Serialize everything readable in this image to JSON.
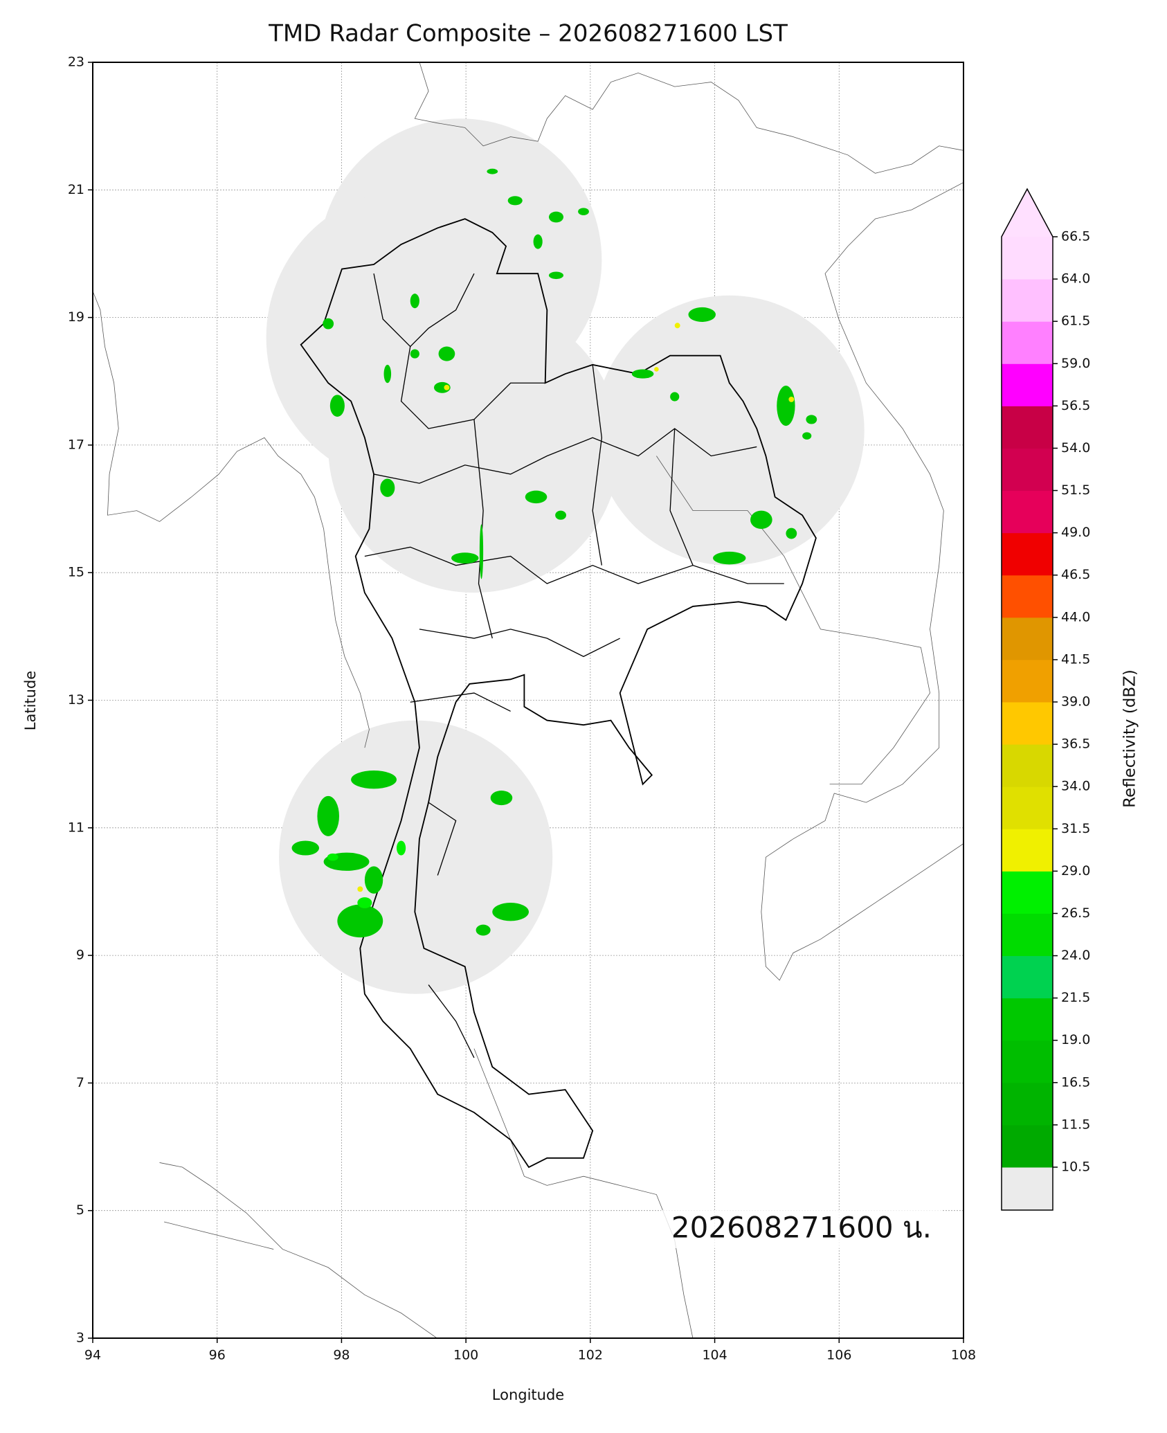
{
  "chart_data": {
    "type": "map",
    "title": "TMD Radar Composite – 202608271600 LST",
    "xlabel": "Longitude",
    "ylabel": "Latitude",
    "xlim": [
      94,
      108
    ],
    "ylim": [
      3,
      23
    ],
    "xticks": [
      94,
      96,
      98,
      100,
      102,
      104,
      106,
      108
    ],
    "yticks": [
      3,
      5,
      7,
      9,
      11,
      13,
      15,
      17,
      19,
      21,
      23
    ],
    "grid": true,
    "annotation": "202608271600 น.",
    "colorbar": {
      "label": "Reflectivity (dBZ)",
      "ticks": [
        10.5,
        11.5,
        16.5,
        {
          "value": 19,
          "label": "19.0"
        },
        21.5,
        {
          "value": 24,
          "label": "24.0"
        },
        26.5,
        {
          "value": 29,
          "label": "29.0"
        },
        31.5,
        {
          "value": 34,
          "label": "34.0"
        },
        36.5,
        {
          "value": 39,
          "label": "39.0"
        },
        41.5,
        {
          "value": 44,
          "label": "44.0"
        },
        46.5,
        {
          "value": 49,
          "label": "49.0"
        },
        51.5,
        {
          "value": 54,
          "label": "54.0"
        },
        56.5,
        {
          "value": 59,
          "label": "59.0"
        },
        61.5,
        {
          "value": 64,
          "label": "64.0"
        },
        66.5
      ],
      "colors": [
        "#00aa00",
        "#00b400",
        "#00be00",
        "#00c800",
        "#00d250",
        "#00dc00",
        "#00f000",
        "#f0f000",
        "#e0e000",
        "#d8d800",
        "#ffc800",
        "#f0a000",
        "#e09600",
        "#ff5000",
        "#f00000",
        "#e6005a",
        "#d20050",
        "#c80046",
        "#ff00ff",
        "#ff80ff",
        "#ffc0ff",
        "#ffdcff"
      ],
      "under_color": "#ebebeb",
      "over_color": "#ffe0ff"
    }
  }
}
